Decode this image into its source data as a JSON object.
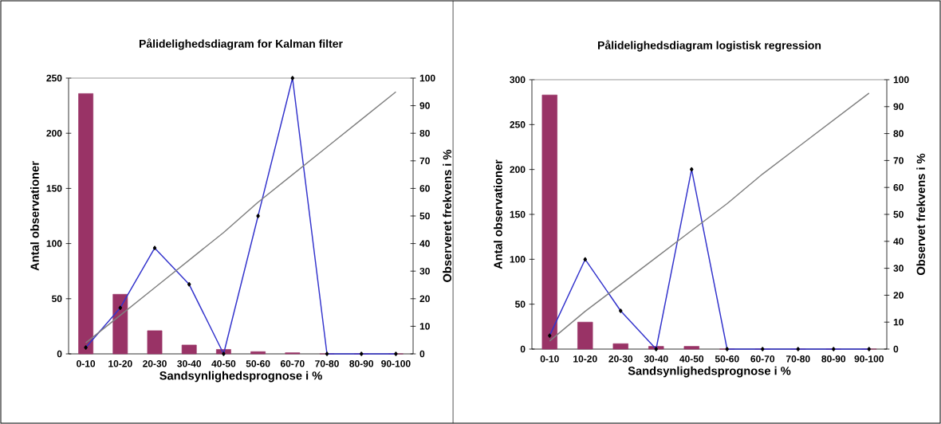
{
  "chart_data": [
    {
      "type": "bar",
      "title": "Pålidelighedsdiagram for Kalman filter",
      "xlabel": "Sandsynlighedsprognose i %",
      "ylabel": "Antal observationer",
      "y2label": "Observeret frekvens i %",
      "categories": [
        "0-10",
        "10-20",
        "20-30",
        "30-40",
        "40-50",
        "50-60",
        "60-70",
        "70-80",
        "80-90",
        "90-100"
      ],
      "series": [
        {
          "type": "bar",
          "color": "#993366",
          "values": [
            236,
            54,
            21,
            8,
            4,
            2,
            1,
            0,
            0,
            0
          ]
        },
        {
          "type": "line",
          "axis": "y2",
          "color": "#3333cc",
          "marker": "diamond",
          "values": [
            2.3,
            16.7,
            38.4,
            25.2,
            0,
            50,
            100,
            0,
            0,
            0
          ]
        },
        {
          "type": "line",
          "axis": "y2",
          "color": "#808080",
          "marker": "none",
          "values": [
            4,
            14,
            24,
            34,
            44,
            55,
            65,
            75,
            85,
            95
          ]
        }
      ],
      "ylim": [
        0,
        250
      ],
      "yticks": [
        0,
        50,
        100,
        150,
        200,
        250
      ],
      "y2lim": [
        0,
        100
      ],
      "y2ticks": [
        0,
        10,
        20,
        30,
        40,
        50,
        60,
        70,
        80,
        90,
        100
      ]
    },
    {
      "type": "bar",
      "title": "Pålidelighedsdiagram logistisk regression",
      "xlabel": "Sandsynlighedsprognose i %",
      "ylabel": "Antal observationer",
      "y2label": "Observet frekvens i %",
      "categories": [
        "0-10",
        "10-20",
        "20-30",
        "30-40",
        "40-50",
        "50-60",
        "60-70",
        "70-80",
        "80-90",
        "90-100"
      ],
      "series": [
        {
          "type": "bar",
          "color": "#993366",
          "values": [
            283,
            30,
            6,
            3,
            3,
            0,
            0,
            0,
            0,
            0
          ]
        },
        {
          "type": "line",
          "axis": "y2",
          "color": "#3333cc",
          "marker": "diamond",
          "values": [
            5,
            33.3,
            14.2,
            0,
            66.7,
            0,
            0,
            0,
            0,
            0
          ]
        },
        {
          "type": "line",
          "axis": "y2",
          "color": "#808080",
          "marker": "none",
          "values": [
            3,
            14,
            24,
            34,
            44,
            54,
            65,
            75,
            85,
            95
          ]
        }
      ],
      "ylim": [
        0,
        300
      ],
      "yticks": [
        0,
        50,
        100,
        150,
        200,
        250,
        300
      ],
      "y2lim": [
        0,
        100
      ],
      "y2ticks": [
        0,
        10,
        20,
        30,
        40,
        50,
        60,
        70,
        80,
        90,
        100
      ]
    }
  ]
}
